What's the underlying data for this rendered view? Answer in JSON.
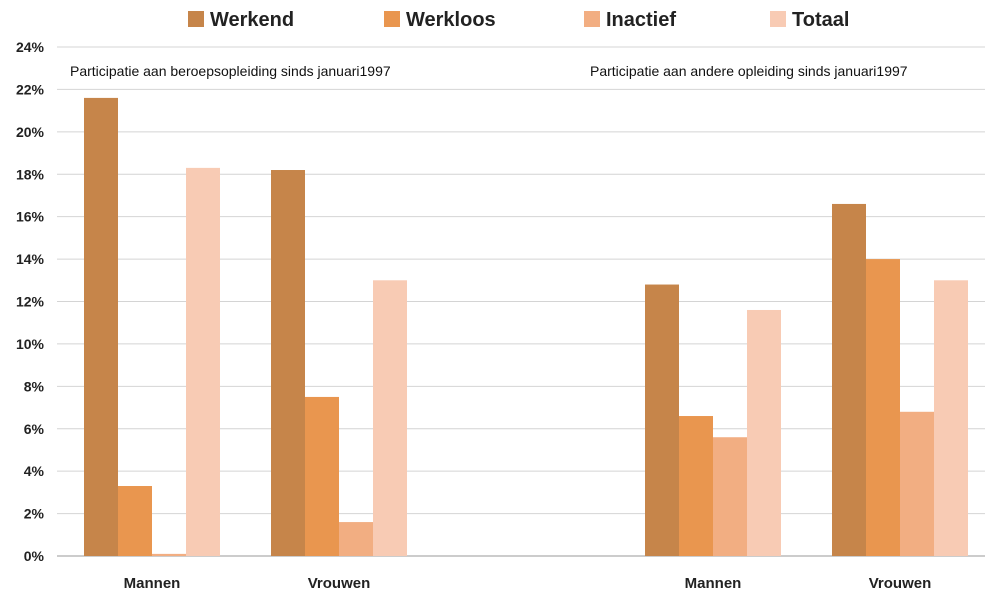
{
  "chart_data": {
    "type": "bar",
    "legend": {
      "placement": "top",
      "entries": [
        {
          "name": "Werkend",
          "color": "#c6854a"
        },
        {
          "name": "Werkloos",
          "color": "#e9964f"
        },
        {
          "name": "Inactief",
          "color": "#f2ae82"
        },
        {
          "name": "Totaal",
          "color": "#f8cbb4"
        }
      ]
    },
    "panels": [
      {
        "annotation": "Participatie aan beroepsopleiding sinds januari1997"
      },
      {
        "annotation": "Participatie aan andere opleiding sinds januari1997"
      }
    ],
    "categories": [
      "Mannen",
      "Vrouwen",
      "Mannen",
      "Vrouwen"
    ],
    "category_panel": [
      0,
      0,
      1,
      1
    ],
    "series": [
      {
        "name": "Werkend",
        "values": [
          21.6,
          18.2,
          12.8,
          16.6
        ]
      },
      {
        "name": "Werkloos",
        "values": [
          3.3,
          7.5,
          6.6,
          14.0
        ]
      },
      {
        "name": "Inactief",
        "values": [
          0.1,
          1.6,
          5.6,
          6.8
        ]
      },
      {
        "name": "Totaal",
        "values": [
          18.3,
          13.0,
          11.6,
          13.0
        ]
      }
    ],
    "ylim": [
      0,
      24
    ],
    "y_ticks": [
      "0%",
      "2%",
      "4%",
      "6%",
      "8%",
      "10%",
      "12%",
      "14%",
      "16%",
      "18%",
      "20%",
      "22%",
      "24%"
    ],
    "grid": true,
    "xlabel": "",
    "ylabel": ""
  }
}
